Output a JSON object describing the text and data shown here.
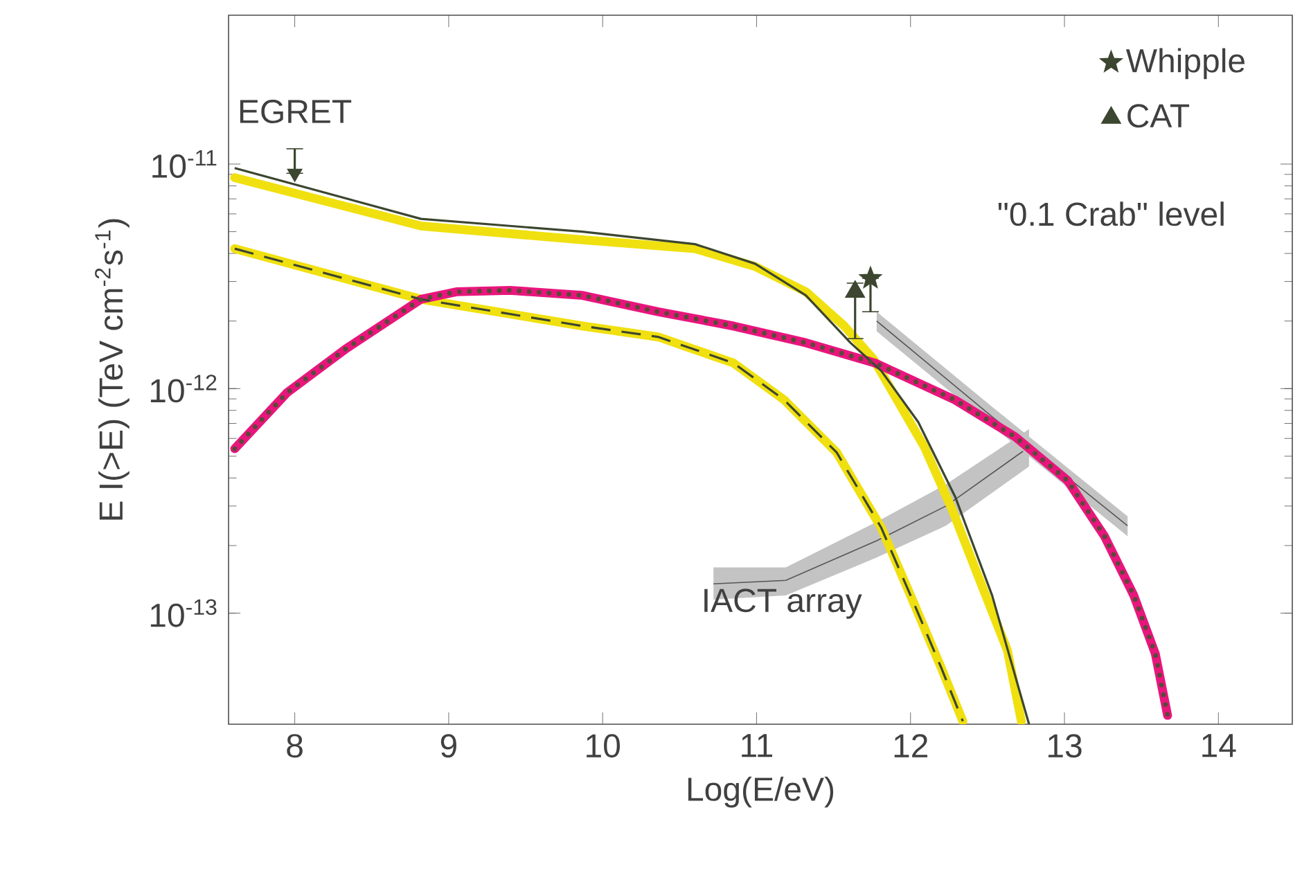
{
  "chart_data": {
    "type": "line",
    "xlabel": "Log(E/eV)",
    "ylabel": "E I(>E) (TeV cm$^{-2}$s$^{-1}$)",
    "log": "y",
    "xlim": [
      7.57,
      14.48
    ],
    "xticks": [
      8,
      9,
      10,
      11,
      12,
      13,
      14
    ],
    "ylim": [
      3.2e-14,
      4.6e-11
    ],
    "yticks": [
      {
        "value": 1e-13,
        "label": "10$^{-13}$"
      },
      {
        "value": 1e-12,
        "label": "10$^{-12}$"
      },
      {
        "value": 1e-11,
        "label": "10$^{-11}$"
      }
    ],
    "legend": "top right",
    "series": [
      {
        "color": "#f0e010",
        "x": [
          7.61,
          8.82,
          9.87,
          10.6,
          10.99,
          11.32,
          11.57,
          11.76,
          12.09,
          12.27,
          12.45,
          12.63,
          12.72
        ],
        "values": [
          8.7e-12,
          5.3e-12,
          4.6e-12,
          4.2e-12,
          3.5e-12,
          2.7e-12,
          1.9e-12,
          1.35e-12,
          5.5e-13,
          2.9e-13,
          1.4e-13,
          6.8e-14,
          3.3e-14
        ]
      },
      {
        "color": "#f0e010",
        "x": [
          7.61,
          8.82,
          9.87,
          10.36,
          10.85,
          11.18,
          11.52,
          11.81,
          12.0,
          12.2,
          12.34
        ],
        "values": [
          4.2e-12,
          2.5e-12,
          1.9e-12,
          1.7e-12,
          1.3e-12,
          8.9e-13,
          5.2e-13,
          2.4e-13,
          1.2e-13,
          5.7e-14,
          3.3e-14
        ]
      },
      {
        "color": "#e8167c",
        "x": [
          7.61,
          7.95,
          8.33,
          8.82,
          9.05,
          9.4,
          9.87,
          10.36,
          10.85,
          11.32,
          11.77,
          12.29,
          12.68,
          13.02,
          13.26,
          13.45,
          13.59,
          13.67
        ],
        "values": [
          5.4e-13,
          9.6e-13,
          1.5e-12,
          2.5e-12,
          2.7e-12,
          2.74e-12,
          2.6e-12,
          2.2e-12,
          1.9e-12,
          1.6e-12,
          1.3e-12,
          8.9e-13,
          6.1e-13,
          3.9e-13,
          2.2e-13,
          1.2e-13,
          6.6e-14,
          3.5e-14
        ]
      },
      {
        "color": "#3c4630",
        "line_style": "solid",
        "x": [
          7.61,
          8.82,
          9.87,
          10.6,
          10.99,
          11.32,
          11.61,
          11.81,
          12.05,
          12.29,
          12.53,
          12.77
        ],
        "values": [
          9.6e-12,
          5.7e-12,
          5e-12,
          4.4e-12,
          3.6e-12,
          2.6e-12,
          1.6e-12,
          1.2e-12,
          7.1e-13,
          3.3e-13,
          1.2e-13,
          3.2e-14
        ]
      },
      {
        "color": "#3c4630",
        "line_style": "dashed",
        "x": [
          7.61,
          8.82,
          9.87,
          10.36,
          10.85,
          11.18,
          11.52,
          11.81,
          12.0,
          12.2,
          12.34
        ],
        "values": [
          4.2e-12,
          2.5e-12,
          1.9e-12,
          1.7e-12,
          1.3e-12,
          8.9e-13,
          5.2e-13,
          2.4e-13,
          1.2e-13,
          5.7e-14,
          3.3e-14
        ]
      },
      {
        "color": "#5a4a3a",
        "line_style": "dotted",
        "x": [
          7.61,
          7.95,
          8.33,
          8.82,
          9.05,
          9.4,
          9.87,
          10.36,
          10.85,
          11.32,
          11.77,
          12.29,
          12.68,
          13.02,
          13.26,
          13.45,
          13.59,
          13.67
        ],
        "values": [
          5.4e-13,
          9.6e-13,
          1.5e-12,
          2.5e-12,
          2.7e-12,
          2.74e-12,
          2.6e-12,
          2.2e-12,
          1.9e-12,
          1.6e-12,
          1.3e-12,
          8.9e-13,
          6.1e-13,
          3.9e-13,
          2.2e-13,
          1.2e-13,
          6.6e-14,
          3.5e-14
        ]
      },
      {
        "color": "#555555",
        "x": [
          10.72,
          11.19,
          11.78,
          12.23,
          12.77
        ],
        "values": [
          1.35e-13,
          1.4e-13,
          2.1e-13,
          3e-13,
          5.5e-13
        ],
        "lower": [
          1.15e-13,
          1.2e-13,
          1.77e-13,
          2.45e-13,
          4.5e-13
        ],
        "upper": [
          1.6e-13,
          1.6e-13,
          2.55e-13,
          3.75e-13,
          6.6e-13
        ]
      },
      {
        "color": "#555555",
        "x": [
          11.78,
          12.53,
          13.41
        ],
        "values": [
          2e-12,
          7.5e-13,
          2.45e-13
        ],
        "lower": [
          1.8e-12,
          6.8e-13,
          2.2e-13
        ],
        "upper": [
          2.2e-12,
          8.3e-13,
          2.7e-13
        ]
      },
      {
        "type": "scatter",
        "name": "EGRET",
        "marker": "triangle",
        "color": "#3c4630",
        "x": [
          8.0
        ],
        "values": [
          9.1e-12
        ],
        "errors": [
          [
            9.1e-12,
            1.17e-11
          ]
        ]
      },
      {
        "type": "scatter",
        "name": "Whipple",
        "marker": "star",
        "color": "#3c4630",
        "x": [
          11.74
        ],
        "values": [
          3.1e-12
        ],
        "errors": [
          [
            2.2e-12,
            3.1e-12
          ]
        ]
      },
      {
        "type": "scatter",
        "name": "CAT",
        "marker": "triangle",
        "color": "#3c4630",
        "x": [
          11.64
        ],
        "values": [
          2.7e-12
        ],
        "errors": [
          [
            1.67e-12,
            2.95e-12
          ]
        ]
      }
    ],
    "annotations": [
      "\"0.1 Crab\" level",
      "IACT array"
    ]
  }
}
